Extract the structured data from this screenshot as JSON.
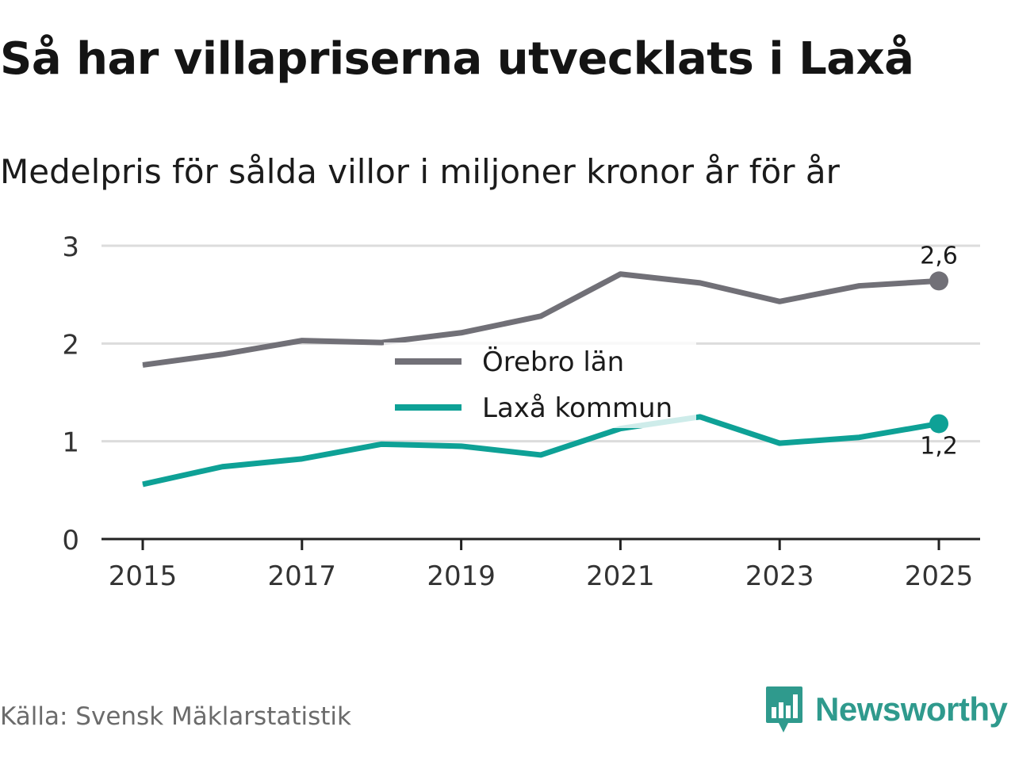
{
  "title": "Så har villapriserna utvecklats i Laxå",
  "subtitle": "Medelpris för sålda villor i miljoner kronor år för år",
  "source": "Källa: Svensk Mäklarstatistik",
  "brand": {
    "name": "Newsworthy",
    "color": "#2f9a8d",
    "icon": "chart-bars-speech-bubble-icon"
  },
  "chart_data": {
    "type": "line",
    "title": "Så har villapriserna utvecklats i Laxå",
    "subtitle": "Medelpris för sålda villor i miljoner kronor år för år",
    "xlabel": "",
    "ylabel": "",
    "x": [
      2015,
      2016,
      2017,
      2018,
      2019,
      2020,
      2021,
      2022,
      2023,
      2024,
      2025
    ],
    "xticks": [
      "2015",
      "2017",
      "2019",
      "2021",
      "2023",
      "2025"
    ],
    "yticks": [
      "0",
      "1",
      "2",
      "3"
    ],
    "ylim": [
      0,
      3
    ],
    "grid": true,
    "legend_position": "center",
    "series": [
      {
        "name": "Örebro län",
        "color": "#717077",
        "values": [
          1.78,
          1.89,
          2.03,
          2.01,
          2.11,
          2.28,
          2.71,
          2.62,
          2.43,
          2.59,
          2.64
        ],
        "end_label": "2,6"
      },
      {
        "name": "Laxå kommun",
        "color": "#0ea196",
        "values": [
          0.56,
          0.74,
          0.82,
          0.97,
          0.95,
          0.86,
          1.13,
          1.25,
          0.98,
          1.04,
          1.18
        ],
        "end_label": "1,2"
      }
    ]
  }
}
